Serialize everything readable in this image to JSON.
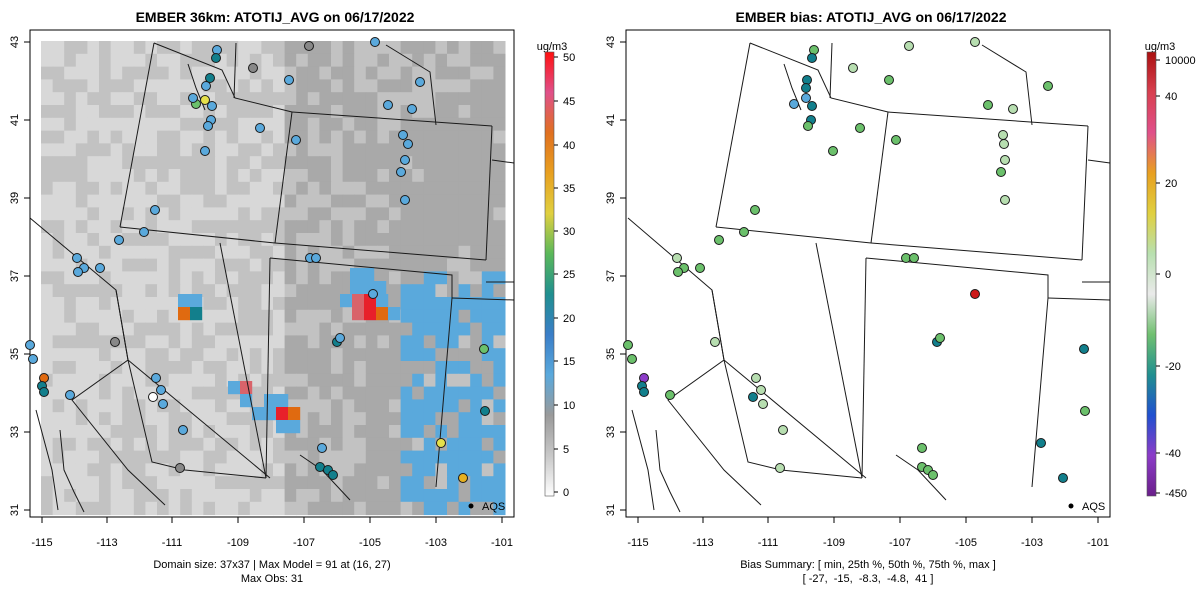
{
  "left_panel": {
    "title": "EMBER 36km: ATOTIJ_AVG on 06/17/2022",
    "footer_line1": "Domain size: 37x37 | Max Model = 91 at (16, 27)",
    "footer_line2": "Max Obs: 31",
    "legend_label": "AQS",
    "colorbar": {
      "unit": "ug/m3",
      "ticks": [
        "0",
        "5",
        "10",
        "15",
        "20",
        "25",
        "30",
        "35",
        "40",
        "45",
        "50"
      ]
    }
  },
  "right_panel": {
    "title": "EMBER bias: ATOTIJ_AVG on 06/17/2022",
    "footer_line1": "Bias Summary: [ min, 25th %, 50th %, 75th %, max ]",
    "footer_line2": "[ -27,  -15,  -8.3,  -4.8,  41 ]",
    "legend_label": "AQS",
    "colorbar": {
      "unit": "ug/m3",
      "ticks": [
        "10000",
        "40",
        "20",
        "0",
        "-20",
        "-40",
        "-450"
      ]
    }
  },
  "axes": {
    "x_ticks": [
      "-115",
      "-113",
      "-111",
      "-109",
      "-107",
      "-105",
      "-103",
      "-101"
    ],
    "y_ticks": [
      "31",
      "33",
      "35",
      "37",
      "39",
      "41",
      "43"
    ]
  },
  "colors": {
    "grid_light": "#d8d8d8",
    "grid_mid": "#c2c2c2",
    "grid_dark": "#a9a9a9",
    "blue": "#5aa9dc",
    "red": "#e8202a",
    "orange": "#e06a10",
    "pink": "#d9636a",
    "teal": "#127f8c",
    "green": "#6bc06b",
    "lightgreen": "#b7deb0",
    "yellow": "#e6e04a",
    "darkred": "#cc1818"
  }
}
